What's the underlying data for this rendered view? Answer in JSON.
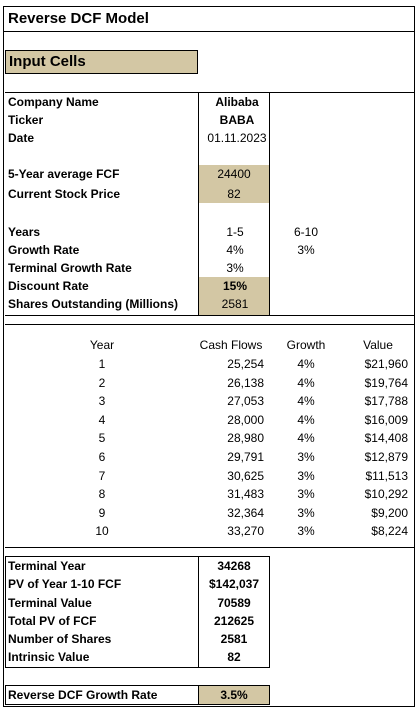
{
  "title": "Reverse DCF Model",
  "input_header": "Input Cells",
  "company": {
    "rows": [
      [
        "Company Name",
        "Alibaba"
      ],
      [
        "Ticker",
        "BABA"
      ],
      [
        "Date",
        "01.11.2023"
      ]
    ]
  },
  "fcf": {
    "rows": [
      [
        "5-Year average FCF",
        "24400"
      ],
      [
        "Current Stock Price",
        "82"
      ]
    ]
  },
  "assumptions": {
    "rows": [
      [
        "Years",
        "1-5",
        "6-10"
      ],
      [
        "Growth Rate",
        "4%",
        "3%"
      ],
      [
        "Terminal Growth Rate",
        "3%"
      ],
      [
        "Discount Rate",
        "15%"
      ],
      [
        "Shares Outstanding (Millions)",
        "2581"
      ]
    ]
  },
  "table": {
    "header": [
      "Year",
      "Cash Flows",
      "Growth",
      "Value"
    ],
    "rows": [
      [
        "1",
        "25,254",
        "4%",
        "$21,960"
      ],
      [
        "2",
        "26,138",
        "4%",
        "$19,764"
      ],
      [
        "3",
        "27,053",
        "4%",
        "$17,788"
      ],
      [
        "4",
        "28,000",
        "4%",
        "$16,009"
      ],
      [
        "5",
        "28,980",
        "4%",
        "$14,408"
      ],
      [
        "6",
        "29,791",
        "3%",
        "$12,879"
      ],
      [
        "7",
        "30,625",
        "3%",
        "$11,513"
      ],
      [
        "8",
        "31,483",
        "3%",
        "$10,292"
      ],
      [
        "9",
        "32,364",
        "3%",
        "$9,200"
      ],
      [
        "10",
        "33,270",
        "3%",
        "$8,224"
      ]
    ]
  },
  "results": {
    "rows": [
      [
        "Terminal Year",
        "34268"
      ],
      [
        "PV of Year 1-10 FCF",
        "$142,037"
      ],
      [
        "Terminal Value",
        "70589"
      ],
      [
        "Total PV of FCF",
        "212625"
      ],
      [
        "Number of Shares",
        "2581"
      ],
      [
        "Intrinsic Value",
        "82"
      ]
    ]
  },
  "reverse": {
    "label": "Reverse DCF Growth Rate",
    "value": "3.5%"
  }
}
